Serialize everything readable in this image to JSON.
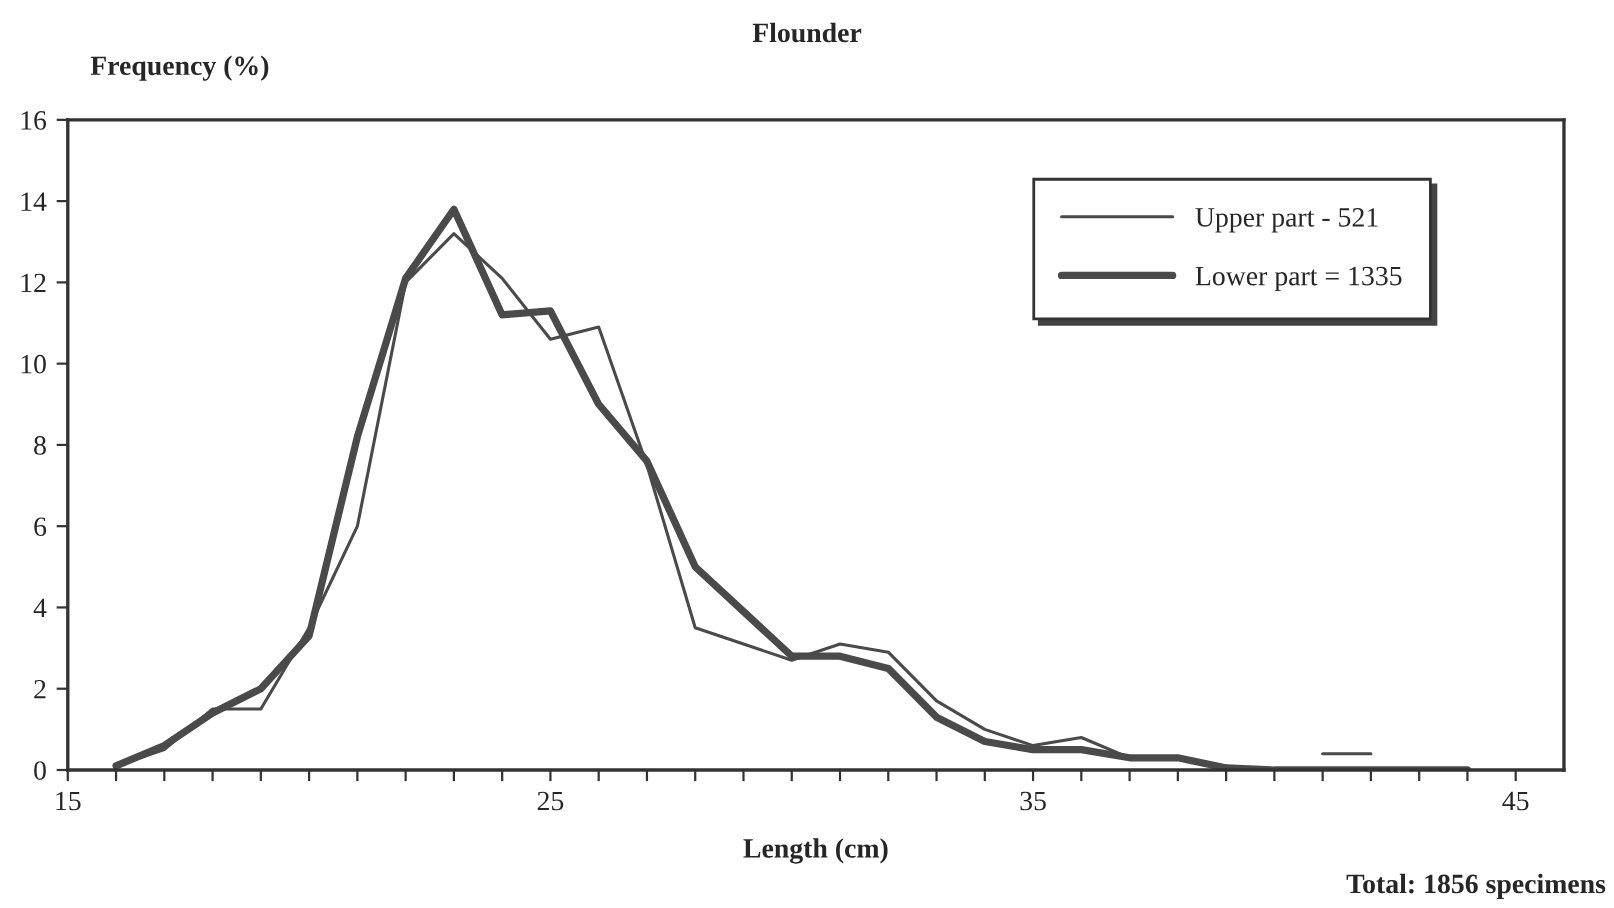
{
  "chart_data": {
    "type": "line",
    "title": "Flounder",
    "xlabel": "Length (cm)",
    "ylabel": "Frequency (%)",
    "annotations": [
      "Total: 1856 specimens"
    ],
    "x": [
      16,
      17,
      18,
      19,
      20,
      21,
      22,
      23,
      24,
      25,
      26,
      27,
      28,
      29,
      30,
      31,
      32,
      33,
      34,
      35,
      36,
      37,
      38,
      39,
      40,
      41,
      42,
      43,
      44
    ],
    "series": [
      {
        "name": "Upper part - 521",
        "color": "#4a4a4a",
        "values": [
          0.1,
          0.5,
          1.5,
          1.5,
          3.5,
          6,
          12,
          13.2,
          12.1,
          10.6,
          10.9,
          7.5,
          3.5,
          3.1,
          2.7,
          3.1,
          2.9,
          1.7,
          1.0,
          0.6,
          0.8,
          0.3,
          0.3,
          0.1,
          null,
          0.4,
          0.4,
          null,
          null
        ]
      },
      {
        "name": "Lower part = 1335",
        "color": "#4a4a4a",
        "values": [
          0.1,
          0.6,
          1.4,
          2.0,
          3.3,
          8.2,
          12.1,
          13.8,
          11.2,
          11.3,
          9.0,
          7.6,
          5.0,
          3.9,
          2.8,
          2.8,
          2.5,
          1.3,
          0.7,
          0.5,
          0.5,
          0.3,
          0.3,
          0.05,
          0,
          0,
          0,
          0,
          0
        ]
      }
    ],
    "xlim": [
      15,
      46
    ],
    "xticks": [
      15,
      {
        "value": 16,
        "label": null
      },
      {
        "value": 17,
        "label": null
      },
      {
        "value": 18,
        "label": null
      },
      {
        "value": 19,
        "label": null
      },
      {
        "value": 20,
        "label": null
      },
      {
        "value": 21,
        "label": null
      },
      {
        "value": 22,
        "label": null
      },
      {
        "value": 23,
        "label": null
      },
      {
        "value": 24,
        "label": null
      },
      25,
      {
        "value": 26,
        "label": null
      },
      {
        "value": 27,
        "label": null
      },
      {
        "value": 28,
        "label": null
      },
      {
        "value": 29,
        "label": null
      },
      {
        "value": 30,
        "label": null
      },
      {
        "value": 31,
        "label": null
      },
      {
        "value": 32,
        "label": null
      },
      {
        "value": 33,
        "label": null
      },
      {
        "value": 34,
        "label": null
      },
      35,
      {
        "value": 36,
        "label": null
      },
      {
        "value": 37,
        "label": null
      },
      {
        "value": 38,
        "label": null
      },
      {
        "value": 39,
        "label": null
      },
      {
        "value": 40,
        "label": null
      },
      {
        "value": 41,
        "label": null
      },
      {
        "value": 42,
        "label": null
      },
      {
        "value": 43,
        "label": null
      },
      {
        "value": 44,
        "label": null
      },
      45
    ],
    "ylim": [
      0,
      16
    ],
    "yticks": [
      0,
      2,
      4,
      6,
      8,
      10,
      12,
      14,
      16
    ],
    "grid": false,
    "legend": "top right",
    "marker": "none",
    "line_style": "solid"
  }
}
